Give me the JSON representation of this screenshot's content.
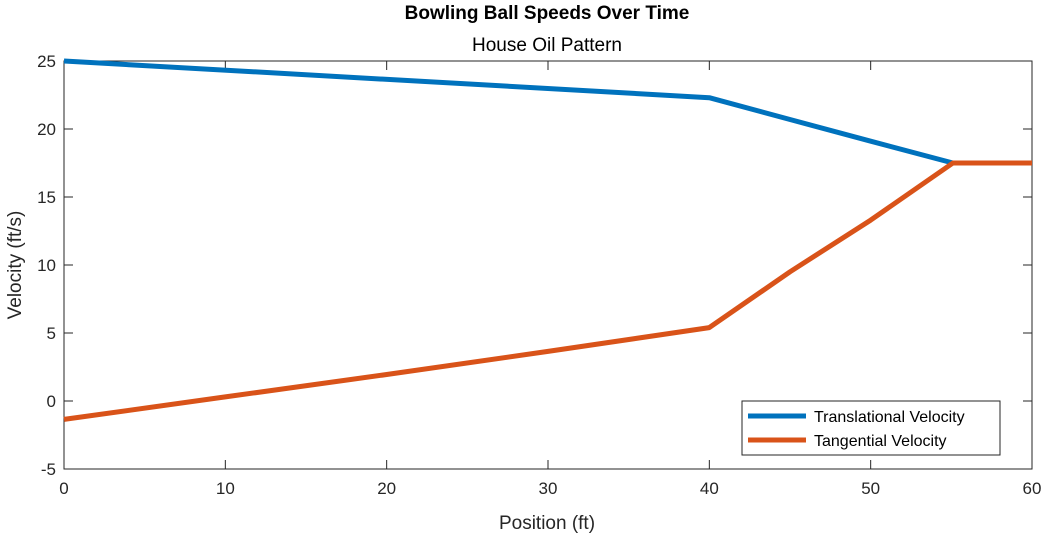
{
  "chart_data": {
    "type": "line",
    "title": "Bowling Ball Speeds Over Time",
    "subtitle": "House Oil Pattern",
    "xlabel": "Position (ft)",
    "ylabel": "Velocity (ft/s)",
    "xlim": [
      0,
      60
    ],
    "ylim": [
      -5,
      25
    ],
    "xticks": [
      0,
      10,
      20,
      30,
      40,
      50,
      60
    ],
    "yticks": [
      -5,
      0,
      5,
      10,
      15,
      20,
      25
    ],
    "xtick_labels": [
      "0",
      "10",
      "20",
      "30",
      "40",
      "50",
      "60"
    ],
    "ytick_labels": [
      "-5",
      "0",
      "5",
      "10",
      "15",
      "20",
      "25"
    ],
    "grid": false,
    "legend_position": "bottom-right",
    "series": [
      {
        "name": "Translational Velocity",
        "color": "#0072BD",
        "x": [
          0,
          40,
          45,
          50,
          55.1,
          60
        ],
        "y": [
          25.0,
          22.3,
          20.7,
          19.1,
          17.5,
          17.5
        ]
      },
      {
        "name": "Tangential Velocity",
        "color": "#D95319",
        "x": [
          0,
          10,
          20,
          30,
          40,
          45,
          50,
          55.1,
          60
        ],
        "y": [
          -1.35,
          0.3,
          1.95,
          3.65,
          5.4,
          9.5,
          13.3,
          17.5,
          17.5
        ]
      }
    ]
  }
}
